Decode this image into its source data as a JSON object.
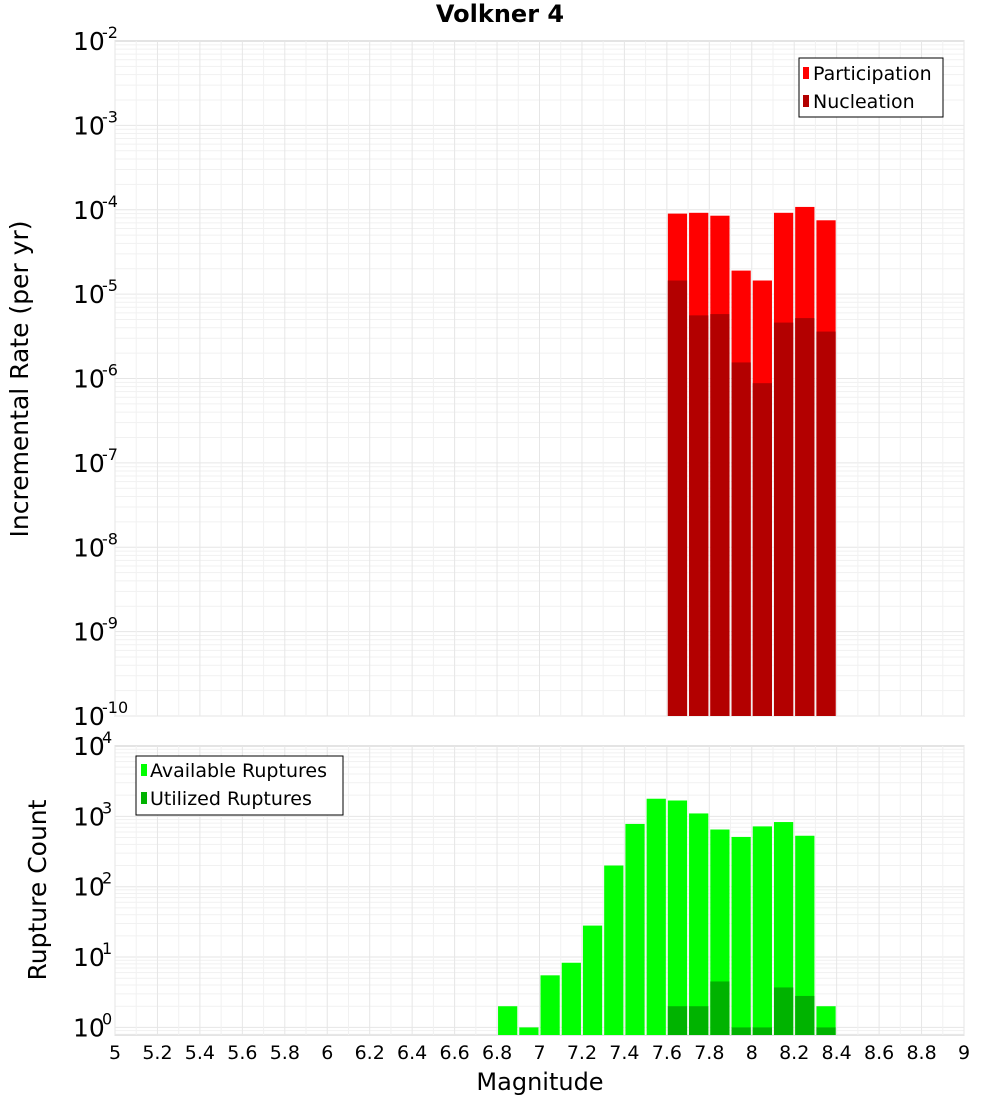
{
  "chart_data": [
    {
      "type": "bar",
      "title": "Volkner 4",
      "ylabel": "Incremental Rate (per yr)",
      "xlabel": "",
      "xlim": [
        5,
        9
      ],
      "ylim": [
        1e-10,
        0.01
      ],
      "yscale": "log",
      "grid": true,
      "legend_position": "top-right",
      "yticks": [
        {
          "base": "10",
          "exp": "-10"
        },
        {
          "base": "10",
          "exp": "-9"
        },
        {
          "base": "10",
          "exp": "-8"
        },
        {
          "base": "10",
          "exp": "-7"
        },
        {
          "base": "10",
          "exp": "-6"
        },
        {
          "base": "10",
          "exp": "-5"
        },
        {
          "base": "10",
          "exp": "-4"
        },
        {
          "base": "10",
          "exp": "-3"
        },
        {
          "base": "10",
          "exp": "-2"
        }
      ],
      "x": [
        7.65,
        7.75,
        7.85,
        7.95,
        8.05,
        8.15,
        8.25,
        8.35
      ],
      "series": [
        {
          "name": "Participation",
          "color": "#ff0000",
          "values": [
            9e-05,
            9.2e-05,
            8.5e-05,
            1.9e-05,
            1.45e-05,
            9.2e-05,
            0.000108,
            7.5e-05
          ]
        },
        {
          "name": "Nucleation",
          "color": "#b30000",
          "values": [
            1.45e-05,
            5.6e-06,
            5.8e-06,
            1.55e-06,
            8.8e-07,
            4.6e-06,
            5.2e-06,
            3.6e-06
          ]
        }
      ]
    },
    {
      "type": "bar",
      "title": "",
      "ylabel": "Rupture Count",
      "xlabel": "Magnitude",
      "xlim": [
        5,
        9
      ],
      "ylim": [
        0.78,
        10000.0
      ],
      "yscale": "log",
      "grid": true,
      "legend_position": "top-left",
      "yticks": [
        {
          "base": "10",
          "exp": "0"
        },
        {
          "base": "10",
          "exp": "1"
        },
        {
          "base": "10",
          "exp": "2"
        },
        {
          "base": "10",
          "exp": "3"
        },
        {
          "base": "10",
          "exp": "4"
        }
      ],
      "xticks": [
        "5",
        "5.2",
        "5.4",
        "5.6",
        "5.8",
        "6",
        "6.2",
        "6.4",
        "6.6",
        "6.8",
        "7",
        "7.2",
        "7.4",
        "7.6",
        "7.8",
        "8",
        "8.2",
        "8.4",
        "8.6",
        "8.8",
        "9"
      ],
      "x": [
        6.85,
        6.95,
        7.05,
        7.15,
        7.25,
        7.35,
        7.45,
        7.55,
        7.65,
        7.75,
        7.85,
        7.95,
        8.05,
        8.15,
        8.25,
        8.35
      ],
      "series": [
        {
          "name": "Available Ruptures",
          "color": "#00ff00",
          "values": [
            2,
            1,
            5.5,
            8.3,
            28,
            200,
            780,
            1780,
            1680,
            1100,
            650,
            510,
            720,
            830,
            530,
            2
          ]
        },
        {
          "name": "Utilized Ruptures",
          "color": "#00b300",
          "values": [
            0,
            0,
            0,
            0,
            0,
            0,
            0,
            0,
            2,
            2,
            4.5,
            1,
            1,
            3.7,
            2.8,
            1
          ]
        }
      ]
    }
  ]
}
